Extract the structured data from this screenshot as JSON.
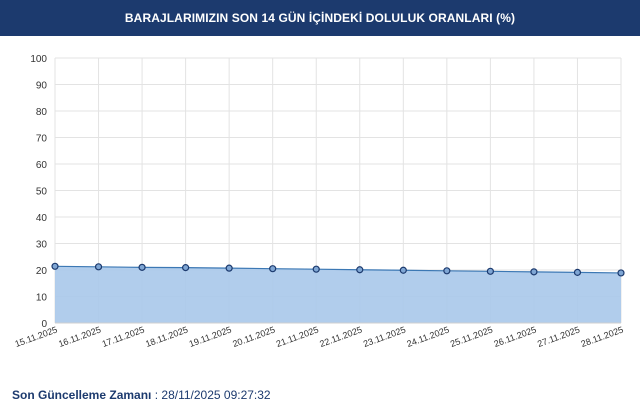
{
  "header": {
    "title": "BARAJLARIMIZIN SON 14 GÜN İÇİNDEKİ DOLULUK ORANLARI (%)"
  },
  "footer": {
    "label": "Son Güncelleme Zamanı",
    "separator": " : ",
    "value": "28/11/2025 09:27:32"
  },
  "colors": {
    "header_bg": "#1c3a6e",
    "area_fill": "#a8c8ea",
    "line": "#3c78b4",
    "marker": "#1c3a6e",
    "grid": "#e3e3e3"
  },
  "chart_data": {
    "type": "area",
    "title": "BARAJLARIMIZIN SON 14 GÜN İÇİNDEKİ DOLULUK ORANLARI (%)",
    "xlabel": "",
    "ylabel": "",
    "ylim": [
      0,
      100
    ],
    "yticks": [
      0,
      10,
      20,
      30,
      40,
      50,
      60,
      70,
      80,
      90,
      100
    ],
    "grid": true,
    "categories": [
      "15.11.2025",
      "16.11.2025",
      "17.11.2025",
      "18.11.2025",
      "19.11.2025",
      "20.11.2025",
      "21.11.2025",
      "22.11.2025",
      "23.11.2025",
      "24.11.2025",
      "25.11.2025",
      "26.11.2025",
      "27.11.2025",
      "28.11.2025"
    ],
    "series": [
      {
        "values": [
          21.4,
          21.2,
          21.0,
          20.9,
          20.7,
          20.5,
          20.3,
          20.1,
          19.9,
          19.7,
          19.5,
          19.3,
          19.1,
          18.9
        ]
      }
    ]
  }
}
